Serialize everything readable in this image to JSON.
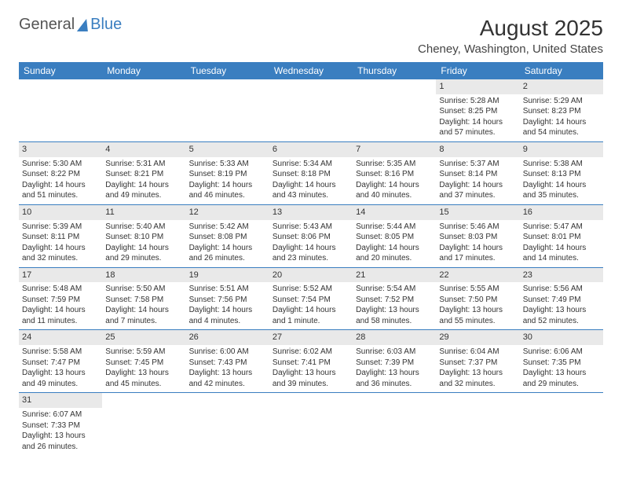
{
  "brand": {
    "part1": "General",
    "part2": "Blue"
  },
  "title": "August 2025",
  "location": "Cheney, Washington, United States",
  "header_bg": "#3a7ec0",
  "header_fg": "#ffffff",
  "daynum_bg": "#e9e9e9",
  "row_border": "#3a7ec0",
  "weekdays": [
    "Sunday",
    "Monday",
    "Tuesday",
    "Wednesday",
    "Thursday",
    "Friday",
    "Saturday"
  ],
  "weeks": [
    [
      null,
      null,
      null,
      null,
      null,
      {
        "n": "1",
        "sr": "Sunrise: 5:28 AM",
        "ss": "Sunset: 8:25 PM",
        "d1": "Daylight: 14 hours",
        "d2": "and 57 minutes."
      },
      {
        "n": "2",
        "sr": "Sunrise: 5:29 AM",
        "ss": "Sunset: 8:23 PM",
        "d1": "Daylight: 14 hours",
        "d2": "and 54 minutes."
      }
    ],
    [
      {
        "n": "3",
        "sr": "Sunrise: 5:30 AM",
        "ss": "Sunset: 8:22 PM",
        "d1": "Daylight: 14 hours",
        "d2": "and 51 minutes."
      },
      {
        "n": "4",
        "sr": "Sunrise: 5:31 AM",
        "ss": "Sunset: 8:21 PM",
        "d1": "Daylight: 14 hours",
        "d2": "and 49 minutes."
      },
      {
        "n": "5",
        "sr": "Sunrise: 5:33 AM",
        "ss": "Sunset: 8:19 PM",
        "d1": "Daylight: 14 hours",
        "d2": "and 46 minutes."
      },
      {
        "n": "6",
        "sr": "Sunrise: 5:34 AM",
        "ss": "Sunset: 8:18 PM",
        "d1": "Daylight: 14 hours",
        "d2": "and 43 minutes."
      },
      {
        "n": "7",
        "sr": "Sunrise: 5:35 AM",
        "ss": "Sunset: 8:16 PM",
        "d1": "Daylight: 14 hours",
        "d2": "and 40 minutes."
      },
      {
        "n": "8",
        "sr": "Sunrise: 5:37 AM",
        "ss": "Sunset: 8:14 PM",
        "d1": "Daylight: 14 hours",
        "d2": "and 37 minutes."
      },
      {
        "n": "9",
        "sr": "Sunrise: 5:38 AM",
        "ss": "Sunset: 8:13 PM",
        "d1": "Daylight: 14 hours",
        "d2": "and 35 minutes."
      }
    ],
    [
      {
        "n": "10",
        "sr": "Sunrise: 5:39 AM",
        "ss": "Sunset: 8:11 PM",
        "d1": "Daylight: 14 hours",
        "d2": "and 32 minutes."
      },
      {
        "n": "11",
        "sr": "Sunrise: 5:40 AM",
        "ss": "Sunset: 8:10 PM",
        "d1": "Daylight: 14 hours",
        "d2": "and 29 minutes."
      },
      {
        "n": "12",
        "sr": "Sunrise: 5:42 AM",
        "ss": "Sunset: 8:08 PM",
        "d1": "Daylight: 14 hours",
        "d2": "and 26 minutes."
      },
      {
        "n": "13",
        "sr": "Sunrise: 5:43 AM",
        "ss": "Sunset: 8:06 PM",
        "d1": "Daylight: 14 hours",
        "d2": "and 23 minutes."
      },
      {
        "n": "14",
        "sr": "Sunrise: 5:44 AM",
        "ss": "Sunset: 8:05 PM",
        "d1": "Daylight: 14 hours",
        "d2": "and 20 minutes."
      },
      {
        "n": "15",
        "sr": "Sunrise: 5:46 AM",
        "ss": "Sunset: 8:03 PM",
        "d1": "Daylight: 14 hours",
        "d2": "and 17 minutes."
      },
      {
        "n": "16",
        "sr": "Sunrise: 5:47 AM",
        "ss": "Sunset: 8:01 PM",
        "d1": "Daylight: 14 hours",
        "d2": "and 14 minutes."
      }
    ],
    [
      {
        "n": "17",
        "sr": "Sunrise: 5:48 AM",
        "ss": "Sunset: 7:59 PM",
        "d1": "Daylight: 14 hours",
        "d2": "and 11 minutes."
      },
      {
        "n": "18",
        "sr": "Sunrise: 5:50 AM",
        "ss": "Sunset: 7:58 PM",
        "d1": "Daylight: 14 hours",
        "d2": "and 7 minutes."
      },
      {
        "n": "19",
        "sr": "Sunrise: 5:51 AM",
        "ss": "Sunset: 7:56 PM",
        "d1": "Daylight: 14 hours",
        "d2": "and 4 minutes."
      },
      {
        "n": "20",
        "sr": "Sunrise: 5:52 AM",
        "ss": "Sunset: 7:54 PM",
        "d1": "Daylight: 14 hours",
        "d2": "and 1 minute."
      },
      {
        "n": "21",
        "sr": "Sunrise: 5:54 AM",
        "ss": "Sunset: 7:52 PM",
        "d1": "Daylight: 13 hours",
        "d2": "and 58 minutes."
      },
      {
        "n": "22",
        "sr": "Sunrise: 5:55 AM",
        "ss": "Sunset: 7:50 PM",
        "d1": "Daylight: 13 hours",
        "d2": "and 55 minutes."
      },
      {
        "n": "23",
        "sr": "Sunrise: 5:56 AM",
        "ss": "Sunset: 7:49 PM",
        "d1": "Daylight: 13 hours",
        "d2": "and 52 minutes."
      }
    ],
    [
      {
        "n": "24",
        "sr": "Sunrise: 5:58 AM",
        "ss": "Sunset: 7:47 PM",
        "d1": "Daylight: 13 hours",
        "d2": "and 49 minutes."
      },
      {
        "n": "25",
        "sr": "Sunrise: 5:59 AM",
        "ss": "Sunset: 7:45 PM",
        "d1": "Daylight: 13 hours",
        "d2": "and 45 minutes."
      },
      {
        "n": "26",
        "sr": "Sunrise: 6:00 AM",
        "ss": "Sunset: 7:43 PM",
        "d1": "Daylight: 13 hours",
        "d2": "and 42 minutes."
      },
      {
        "n": "27",
        "sr": "Sunrise: 6:02 AM",
        "ss": "Sunset: 7:41 PM",
        "d1": "Daylight: 13 hours",
        "d2": "and 39 minutes."
      },
      {
        "n": "28",
        "sr": "Sunrise: 6:03 AM",
        "ss": "Sunset: 7:39 PM",
        "d1": "Daylight: 13 hours",
        "d2": "and 36 minutes."
      },
      {
        "n": "29",
        "sr": "Sunrise: 6:04 AM",
        "ss": "Sunset: 7:37 PM",
        "d1": "Daylight: 13 hours",
        "d2": "and 32 minutes."
      },
      {
        "n": "30",
        "sr": "Sunrise: 6:06 AM",
        "ss": "Sunset: 7:35 PM",
        "d1": "Daylight: 13 hours",
        "d2": "and 29 minutes."
      }
    ],
    [
      {
        "n": "31",
        "sr": "Sunrise: 6:07 AM",
        "ss": "Sunset: 7:33 PM",
        "d1": "Daylight: 13 hours",
        "d2": "and 26 minutes."
      },
      null,
      null,
      null,
      null,
      null,
      null
    ]
  ]
}
